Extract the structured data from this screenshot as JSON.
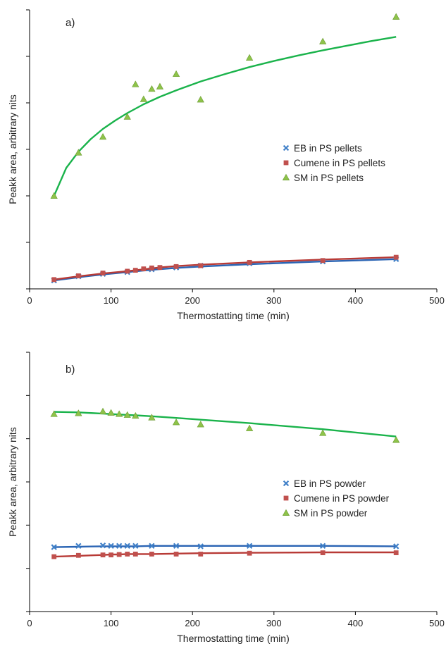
{
  "chart_data": [
    {
      "type": "scatter",
      "panel_label": "a)",
      "xlabel": "Thermostatting time (min)",
      "ylabel": "Peakk area, arbitrary nits",
      "xlim": [
        0,
        500
      ],
      "x_ticks": [
        0,
        100,
        200,
        300,
        400,
        500
      ],
      "ylim": [
        0,
        6
      ],
      "y_tick_count": 7,
      "y_tick_labels_shown": false,
      "grid": false,
      "legend_placement": "right-center",
      "series": [
        {
          "name": "EB in PS pellets",
          "marker": "x",
          "color": "#3f7fc7",
          "line_color": "#2a64b4",
          "x": [
            30,
            60,
            90,
            120,
            150,
            180,
            210,
            270,
            360,
            450
          ],
          "y": [
            0.18,
            0.27,
            0.32,
            0.36,
            0.42,
            0.46,
            0.5,
            0.55,
            0.59,
            0.64
          ],
          "fit_y": [
            0.18,
            0.25,
            0.31,
            0.36,
            0.41,
            0.45,
            0.48,
            0.53,
            0.59,
            0.64
          ]
        },
        {
          "name": "Cumene in PS pellets",
          "marker": "square",
          "color": "#c0504d",
          "line_color": "#b83a36",
          "x": [
            30,
            60,
            90,
            120,
            130,
            140,
            150,
            160,
            180,
            210,
            270,
            360,
            450
          ],
          "y": [
            0.2,
            0.28,
            0.34,
            0.38,
            0.4,
            0.43,
            0.45,
            0.46,
            0.48,
            0.5,
            0.57,
            0.61,
            0.68
          ],
          "fit_y": [
            0.2,
            0.27,
            0.33,
            0.38,
            0.4,
            0.42,
            0.44,
            0.46,
            0.49,
            0.52,
            0.57,
            0.63,
            0.68
          ]
        },
        {
          "name": "SM in PS pellets",
          "marker": "triangle",
          "color": "#8ec34a",
          "line_color": "#1ab34b",
          "x": [
            30,
            60,
            90,
            120,
            130,
            140,
            150,
            160,
            180,
            210,
            270,
            360,
            450
          ],
          "y": [
            2.0,
            2.93,
            3.27,
            3.7,
            4.4,
            4.08,
            4.3,
            4.35,
            4.62,
            4.07,
            4.97,
            5.32,
            5.85
          ],
          "fit_x": [
            30,
            45,
            60,
            75,
            90,
            105,
            120,
            140,
            160,
            180,
            210,
            240,
            270,
            300,
            330,
            360,
            390,
            420,
            450
          ],
          "fit_y": [
            2.0,
            2.6,
            2.95,
            3.22,
            3.44,
            3.62,
            3.78,
            3.97,
            4.13,
            4.27,
            4.46,
            4.62,
            4.77,
            4.9,
            5.02,
            5.13,
            5.23,
            5.33,
            5.42
          ]
        }
      ]
    },
    {
      "type": "scatter",
      "panel_label": "b)",
      "xlabel": "Thermostatting time (min)",
      "ylabel": "Peakk area, arbitrary nits",
      "xlim": [
        0,
        500
      ],
      "x_ticks": [
        0,
        100,
        200,
        300,
        400,
        500
      ],
      "ylim": [
        0,
        6
      ],
      "y_tick_count": 7,
      "y_tick_labels_shown": false,
      "grid": false,
      "legend_placement": "right-center",
      "series": [
        {
          "name": "EB in PS powder",
          "marker": "x",
          "color": "#3f7fc7",
          "line_color": "#2a64b4",
          "x": [
            30,
            60,
            90,
            100,
            110,
            120,
            130,
            150,
            180,
            210,
            270,
            360,
            450
          ],
          "y": [
            1.49,
            1.52,
            1.53,
            1.52,
            1.52,
            1.52,
            1.52,
            1.52,
            1.52,
            1.51,
            1.52,
            1.52,
            1.51
          ],
          "fit_y": [
            1.49,
            1.5,
            1.51,
            1.51,
            1.51,
            1.51,
            1.51,
            1.52,
            1.52,
            1.52,
            1.52,
            1.52,
            1.51
          ]
        },
        {
          "name": "Cumene in PS powder",
          "marker": "square",
          "color": "#c0504d",
          "line_color": "#b83a36",
          "x": [
            30,
            60,
            90,
            100,
            110,
            120,
            130,
            150,
            180,
            210,
            270,
            360,
            450
          ],
          "y": [
            1.27,
            1.3,
            1.31,
            1.31,
            1.32,
            1.33,
            1.33,
            1.33,
            1.33,
            1.33,
            1.35,
            1.36,
            1.36
          ],
          "fit_y": [
            1.27,
            1.29,
            1.31,
            1.32,
            1.32,
            1.33,
            1.33,
            1.33,
            1.34,
            1.35,
            1.36,
            1.37,
            1.37
          ]
        },
        {
          "name": "SM in PS powder",
          "marker": "triangle",
          "color": "#8ec34a",
          "line_color": "#1ab34b",
          "x": [
            30,
            60,
            90,
            100,
            110,
            120,
            130,
            150,
            180,
            210,
            270,
            360,
            450
          ],
          "y": [
            4.57,
            4.59,
            4.63,
            4.6,
            4.57,
            4.55,
            4.53,
            4.49,
            4.38,
            4.33,
            4.24,
            4.13,
            3.97
          ],
          "fit_y": [
            4.62,
            4.61,
            4.58,
            4.57,
            4.56,
            4.55,
            4.54,
            4.52,
            4.48,
            4.44,
            4.36,
            4.22,
            4.05
          ]
        }
      ]
    }
  ]
}
